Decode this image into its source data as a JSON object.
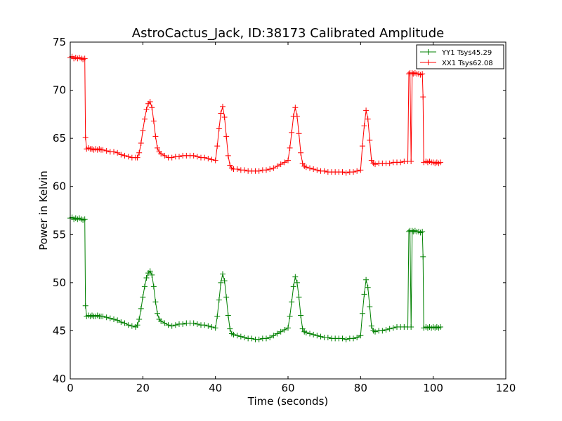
{
  "chart_data": {
    "type": "line",
    "title": "AstroCactus_Jack, ID:38173 Calibrated Amplitude",
    "xlabel": "Time (seconds)",
    "ylabel": "Power in Kelvin",
    "xlim": [
      0,
      120
    ],
    "ylim": [
      40,
      75
    ],
    "xticks": [
      0,
      20,
      40,
      60,
      80,
      100,
      120
    ],
    "yticks": [
      40,
      45,
      50,
      55,
      60,
      65,
      70,
      75
    ],
    "grid": false,
    "legend_position": "top-right",
    "marker": "+",
    "series": [
      {
        "name": "YY1 Tsys45.29",
        "color": "#008000",
        "points": [
          [
            0,
            56.7
          ],
          [
            0.5,
            56.8
          ],
          [
            1,
            56.6
          ],
          [
            1.5,
            56.7
          ],
          [
            2,
            56.6
          ],
          [
            2.5,
            56.7
          ],
          [
            3,
            56.6
          ],
          [
            3.5,
            56.5
          ],
          [
            4,
            56.6
          ],
          [
            4.2,
            47.6
          ],
          [
            4.5,
            46.5
          ],
          [
            5,
            46.6
          ],
          [
            5.5,
            46.5
          ],
          [
            6,
            46.6
          ],
          [
            6.5,
            46.5
          ],
          [
            7,
            46.5
          ],
          [
            7.5,
            46.6
          ],
          [
            8,
            46.5
          ],
          [
            8.5,
            46.5
          ],
          [
            9,
            46.5
          ],
          [
            10,
            46.4
          ],
          [
            11,
            46.3
          ],
          [
            12,
            46.2
          ],
          [
            13,
            46.1
          ],
          [
            14,
            45.9
          ],
          [
            15,
            45.8
          ],
          [
            16,
            45.6
          ],
          [
            17,
            45.5
          ],
          [
            18,
            45.4
          ],
          [
            18.5,
            45.6
          ],
          [
            19,
            46.2
          ],
          [
            19.5,
            47.3
          ],
          [
            20,
            48.5
          ],
          [
            20.5,
            49.6
          ],
          [
            21,
            50.5
          ],
          [
            21.5,
            51.0
          ],
          [
            22,
            51.2
          ],
          [
            22.5,
            50.8
          ],
          [
            23,
            49.6
          ],
          [
            23.5,
            48.0
          ],
          [
            24,
            46.8
          ],
          [
            24.5,
            46.2
          ],
          [
            25,
            46.0
          ],
          [
            26,
            45.8
          ],
          [
            27,
            45.6
          ],
          [
            28,
            45.5
          ],
          [
            29,
            45.6
          ],
          [
            30,
            45.7
          ],
          [
            31,
            45.7
          ],
          [
            32,
            45.8
          ],
          [
            33,
            45.8
          ],
          [
            34,
            45.8
          ],
          [
            35,
            45.7
          ],
          [
            36,
            45.6
          ],
          [
            37,
            45.6
          ],
          [
            38,
            45.5
          ],
          [
            39,
            45.4
          ],
          [
            40,
            45.3
          ],
          [
            40.5,
            46.5
          ],
          [
            41,
            48.2
          ],
          [
            41.5,
            50.0
          ],
          [
            42,
            50.9
          ],
          [
            42.5,
            50.2
          ],
          [
            43,
            48.5
          ],
          [
            43.5,
            46.6
          ],
          [
            44,
            45.2
          ],
          [
            44.5,
            44.7
          ],
          [
            45,
            44.6
          ],
          [
            46,
            44.5
          ],
          [
            47,
            44.4
          ],
          [
            48,
            44.3
          ],
          [
            49,
            44.2
          ],
          [
            50,
            44.2
          ],
          [
            51,
            44.1
          ],
          [
            52,
            44.1
          ],
          [
            53,
            44.2
          ],
          [
            54,
            44.2
          ],
          [
            55,
            44.3
          ],
          [
            56,
            44.5
          ],
          [
            57,
            44.7
          ],
          [
            58,
            44.9
          ],
          [
            59,
            45.1
          ],
          [
            60,
            45.3
          ],
          [
            60.5,
            46.5
          ],
          [
            61,
            48.0
          ],
          [
            61.5,
            49.6
          ],
          [
            62,
            50.6
          ],
          [
            62.5,
            50.0
          ],
          [
            63,
            48.5
          ],
          [
            63.5,
            46.6
          ],
          [
            64,
            45.2
          ],
          [
            64.5,
            44.9
          ],
          [
            65,
            44.8
          ],
          [
            66,
            44.7
          ],
          [
            67,
            44.6
          ],
          [
            68,
            44.5
          ],
          [
            69,
            44.4
          ],
          [
            70,
            44.3
          ],
          [
            71,
            44.3
          ],
          [
            72,
            44.2
          ],
          [
            73,
            44.2
          ],
          [
            74,
            44.2
          ],
          [
            75,
            44.2
          ],
          [
            76,
            44.1
          ],
          [
            77,
            44.2
          ],
          [
            78,
            44.2
          ],
          [
            79,
            44.3
          ],
          [
            80,
            44.5
          ],
          [
            80.5,
            46.8
          ],
          [
            81,
            48.8
          ],
          [
            81.5,
            50.3
          ],
          [
            82,
            49.5
          ],
          [
            82.5,
            47.5
          ],
          [
            83,
            45.5
          ],
          [
            83.5,
            45.0
          ],
          [
            84,
            44.9
          ],
          [
            85,
            45.0
          ],
          [
            86,
            45.0
          ],
          [
            87,
            45.1
          ],
          [
            88,
            45.2
          ],
          [
            89,
            45.3
          ],
          [
            90,
            45.4
          ],
          [
            91,
            45.4
          ],
          [
            92,
            45.4
          ],
          [
            93,
            45.4
          ],
          [
            93.3,
            55.3
          ],
          [
            93.6,
            55.4
          ],
          [
            93.9,
            45.4
          ],
          [
            94.2,
            55.4
          ],
          [
            94.5,
            55.3
          ],
          [
            95,
            55.4
          ],
          [
            95.5,
            55.3
          ],
          [
            96,
            55.3
          ],
          [
            96.5,
            55.2
          ],
          [
            97,
            55.3
          ],
          [
            97.2,
            52.7
          ],
          [
            97.4,
            45.3
          ],
          [
            98,
            45.4
          ],
          [
            98.5,
            45.3
          ],
          [
            99,
            45.4
          ],
          [
            99.5,
            45.3
          ],
          [
            100,
            45.4
          ],
          [
            100.5,
            45.3
          ],
          [
            101,
            45.4
          ],
          [
            101.5,
            45.3
          ],
          [
            102,
            45.4
          ]
        ]
      },
      {
        "name": "XX1 Tsys62.08",
        "color": "#ff0000",
        "points": [
          [
            0,
            73.4
          ],
          [
            0.5,
            73.5
          ],
          [
            1,
            73.3
          ],
          [
            1.5,
            73.4
          ],
          [
            2,
            73.3
          ],
          [
            2.5,
            73.4
          ],
          [
            3,
            73.3
          ],
          [
            3.5,
            73.2
          ],
          [
            4,
            73.3
          ],
          [
            4.2,
            65.1
          ],
          [
            4.5,
            63.9
          ],
          [
            5,
            64.0
          ],
          [
            5.5,
            63.9
          ],
          [
            6,
            63.9
          ],
          [
            6.5,
            63.8
          ],
          [
            7,
            63.9
          ],
          [
            7.5,
            63.8
          ],
          [
            8,
            63.9
          ],
          [
            8.5,
            63.8
          ],
          [
            9,
            63.8
          ],
          [
            10,
            63.7
          ],
          [
            11,
            63.6
          ],
          [
            12,
            63.6
          ],
          [
            13,
            63.5
          ],
          [
            14,
            63.3
          ],
          [
            15,
            63.2
          ],
          [
            16,
            63.1
          ],
          [
            17,
            63.0
          ],
          [
            18,
            63.0
          ],
          [
            18.5,
            63.0
          ],
          [
            19,
            63.5
          ],
          [
            19.5,
            64.5
          ],
          [
            20,
            65.8
          ],
          [
            20.5,
            67.0
          ],
          [
            21,
            68.0
          ],
          [
            21.5,
            68.6
          ],
          [
            22,
            68.8
          ],
          [
            22.5,
            68.2
          ],
          [
            23,
            66.8
          ],
          [
            23.5,
            65.2
          ],
          [
            24,
            64.0
          ],
          [
            24.5,
            63.6
          ],
          [
            25,
            63.4
          ],
          [
            26,
            63.2
          ],
          [
            27,
            63.0
          ],
          [
            28,
            63.0
          ],
          [
            29,
            63.1
          ],
          [
            30,
            63.1
          ],
          [
            31,
            63.2
          ],
          [
            32,
            63.2
          ],
          [
            33,
            63.2
          ],
          [
            34,
            63.2
          ],
          [
            35,
            63.1
          ],
          [
            36,
            63.0
          ],
          [
            37,
            63.0
          ],
          [
            38,
            62.9
          ],
          [
            39,
            62.8
          ],
          [
            40,
            62.7
          ],
          [
            40.5,
            64.2
          ],
          [
            41,
            66.0
          ],
          [
            41.5,
            67.6
          ],
          [
            42,
            68.3
          ],
          [
            42.5,
            67.2
          ],
          [
            43,
            65.2
          ],
          [
            43.5,
            63.2
          ],
          [
            44,
            62.2
          ],
          [
            44.5,
            61.9
          ],
          [
            45,
            61.8
          ],
          [
            46,
            61.8
          ],
          [
            47,
            61.7
          ],
          [
            48,
            61.7
          ],
          [
            49,
            61.6
          ],
          [
            50,
            61.6
          ],
          [
            51,
            61.6
          ],
          [
            52,
            61.6
          ],
          [
            53,
            61.7
          ],
          [
            54,
            61.7
          ],
          [
            55,
            61.8
          ],
          [
            56,
            61.9
          ],
          [
            57,
            62.1
          ],
          [
            58,
            62.3
          ],
          [
            59,
            62.5
          ],
          [
            60,
            62.7
          ],
          [
            60.5,
            64.0
          ],
          [
            61,
            65.6
          ],
          [
            61.5,
            67.3
          ],
          [
            62,
            68.2
          ],
          [
            62.5,
            67.3
          ],
          [
            63,
            65.5
          ],
          [
            63.5,
            63.5
          ],
          [
            64,
            62.4
          ],
          [
            64.5,
            62.1
          ],
          [
            65,
            62.0
          ],
          [
            66,
            61.9
          ],
          [
            67,
            61.8
          ],
          [
            68,
            61.7
          ],
          [
            69,
            61.6
          ],
          [
            70,
            61.6
          ],
          [
            71,
            61.5
          ],
          [
            72,
            61.5
          ],
          [
            73,
            61.5
          ],
          [
            74,
            61.5
          ],
          [
            75,
            61.5
          ],
          [
            76,
            61.4
          ],
          [
            77,
            61.5
          ],
          [
            78,
            61.5
          ],
          [
            79,
            61.6
          ],
          [
            80,
            61.7
          ],
          [
            80.5,
            64.2
          ],
          [
            81,
            66.3
          ],
          [
            81.5,
            67.9
          ],
          [
            82,
            67.0
          ],
          [
            82.5,
            64.8
          ],
          [
            83,
            62.7
          ],
          [
            83.5,
            62.4
          ],
          [
            84,
            62.3
          ],
          [
            85,
            62.4
          ],
          [
            86,
            62.4
          ],
          [
            87,
            62.4
          ],
          [
            88,
            62.4
          ],
          [
            89,
            62.5
          ],
          [
            90,
            62.5
          ],
          [
            91,
            62.5
          ],
          [
            92,
            62.6
          ],
          [
            93,
            62.6
          ],
          [
            93.3,
            71.7
          ],
          [
            93.6,
            71.8
          ],
          [
            93.9,
            62.6
          ],
          [
            94.2,
            71.8
          ],
          [
            94.5,
            71.7
          ],
          [
            95,
            71.8
          ],
          [
            95.5,
            71.7
          ],
          [
            96,
            71.7
          ],
          [
            96.5,
            71.6
          ],
          [
            97,
            71.7
          ],
          [
            97.2,
            69.3
          ],
          [
            97.4,
            62.5
          ],
          [
            98,
            62.6
          ],
          [
            98.5,
            62.5
          ],
          [
            99,
            62.6
          ],
          [
            99.5,
            62.5
          ],
          [
            100,
            62.5
          ],
          [
            100.5,
            62.4
          ],
          [
            101,
            62.5
          ],
          [
            101.5,
            62.4
          ],
          [
            102,
            62.5
          ]
        ]
      }
    ]
  }
}
